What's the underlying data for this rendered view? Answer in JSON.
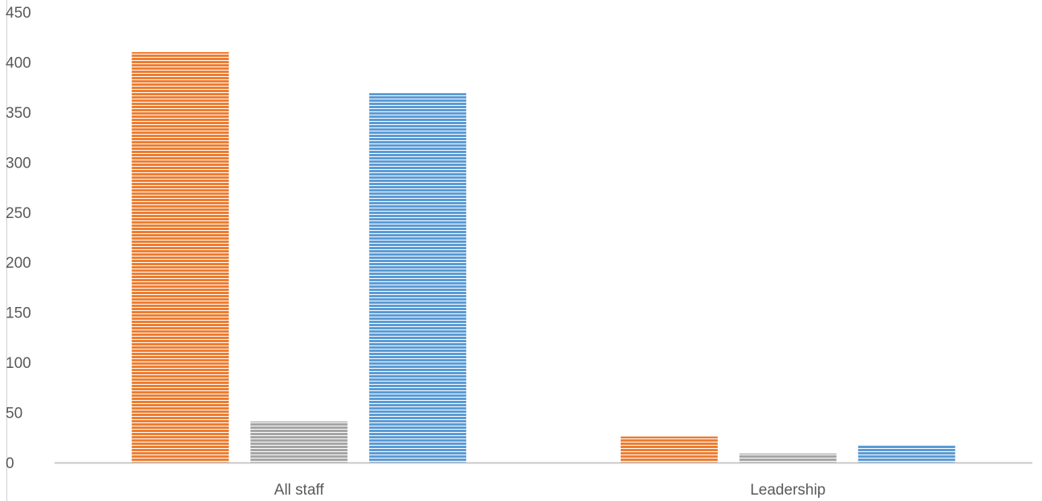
{
  "chart_data": {
    "type": "bar",
    "categories": [
      "All staff",
      "Leadership"
    ],
    "series": [
      {
        "values": [
          410,
          26
        ],
        "color": "#ED7D31"
      },
      {
        "values": [
          41,
          9
        ],
        "color": "#A5A5A5"
      },
      {
        "values": [
          369,
          17
        ],
        "color": "#5B9BD5"
      }
    ],
    "yticks": [
      "0",
      "50",
      "100",
      "150",
      "200",
      "250",
      "300",
      "350",
      "400",
      "450"
    ],
    "ylim": [
      0,
      450
    ],
    "title": "",
    "xlabel": "",
    "ylabel": "",
    "grid": false,
    "legend": "none",
    "fill_pattern": "horizontal-stripes"
  }
}
